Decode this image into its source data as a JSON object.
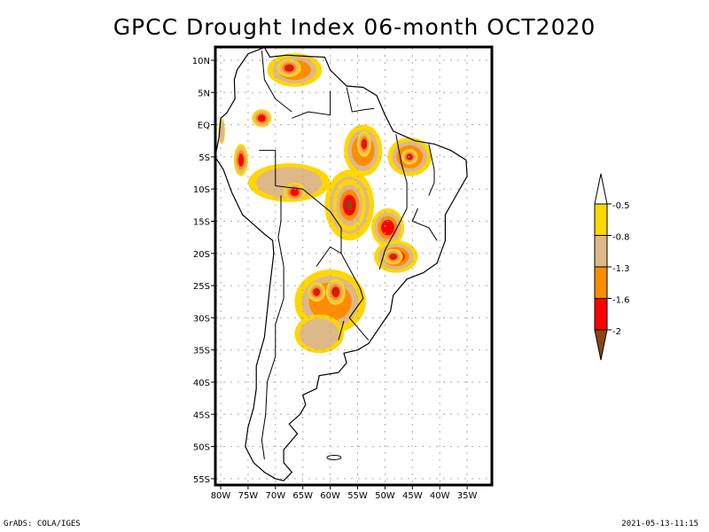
{
  "title": "GPCC Drought Index 06-month OCT2020",
  "map": {
    "projection": "latlon",
    "lon_range": [
      -81,
      -30
    ],
    "lat_range": [
      -56,
      12
    ],
    "lat_ticks": [
      {
        "value": 10,
        "label": "10N"
      },
      {
        "value": 5,
        "label": "5N"
      },
      {
        "value": 0,
        "label": "EQ"
      },
      {
        "value": -5,
        "label": "5S"
      },
      {
        "value": -10,
        "label": "10S"
      },
      {
        "value": -15,
        "label": "15S"
      },
      {
        "value": -20,
        "label": "20S"
      },
      {
        "value": -25,
        "label": "25S"
      },
      {
        "value": -30,
        "label": "30S"
      },
      {
        "value": -35,
        "label": "35S"
      },
      {
        "value": -40,
        "label": "40S"
      },
      {
        "value": -45,
        "label": "45S"
      },
      {
        "value": -50,
        "label": "50S"
      },
      {
        "value": -55,
        "label": "55S"
      }
    ],
    "lon_ticks": [
      {
        "value": -80,
        "label": "80W"
      },
      {
        "value": -75,
        "label": "75W"
      },
      {
        "value": -70,
        "label": "70W"
      },
      {
        "value": -65,
        "label": "65W"
      },
      {
        "value": -60,
        "label": "60W"
      },
      {
        "value": -55,
        "label": "55W"
      },
      {
        "value": -50,
        "label": "50W"
      },
      {
        "value": -45,
        "label": "45W"
      },
      {
        "value": -40,
        "label": "40W"
      },
      {
        "value": -35,
        "label": "35W"
      }
    ],
    "grid": "dotted",
    "regions": [
      {
        "name": "venezuela-north",
        "lon": -66.5,
        "lat": 8.5,
        "rx": 5.0,
        "ry": 2.6,
        "level": 3
      },
      {
        "name": "venezuela-core",
        "lon": -67.5,
        "lat": 8.8,
        "rx": 2.2,
        "ry": 1.4,
        "level": 5
      },
      {
        "name": "colombia-central",
        "lon": -72.5,
        "lat": 1.0,
        "rx": 1.8,
        "ry": 1.4,
        "level": 4
      },
      {
        "name": "ecuador-coast",
        "lon": -79.8,
        "lat": -1.0,
        "rx": 0.6,
        "ry": 2.0,
        "level": 2
      },
      {
        "name": "peru-north",
        "lon": -76.3,
        "lat": -5.5,
        "rx": 1.3,
        "ry": 2.5,
        "level": 4
      },
      {
        "name": "amazon-southwest",
        "lon": -67.5,
        "lat": -9.0,
        "rx": 7.5,
        "ry": 3.0,
        "level": 2
      },
      {
        "name": "bolivia-north",
        "lon": -66.5,
        "lat": -10.5,
        "rx": 2.0,
        "ry": 1.5,
        "level": 4
      },
      {
        "name": "mato-grosso",
        "lon": -56.5,
        "lat": -12.5,
        "rx": 4.5,
        "ry": 5.5,
        "level": 4
      },
      {
        "name": "mato-grosso-core",
        "lon": -56.5,
        "lat": -12.5,
        "rx": 3.0,
        "ry": 4.0,
        "level": 5
      },
      {
        "name": "para-central",
        "lon": -54.0,
        "lat": -4.0,
        "rx": 3.5,
        "ry": 4.0,
        "level": 3
      },
      {
        "name": "para-core",
        "lon": -53.8,
        "lat": -3.0,
        "rx": 1.3,
        "ry": 2.0,
        "level": 5
      },
      {
        "name": "maranhao",
        "lon": -45.5,
        "lat": -5.0,
        "rx": 4.0,
        "ry": 3.0,
        "level": 3
      },
      {
        "name": "maranhao-core",
        "lon": -45.5,
        "lat": -5.0,
        "rx": 1.5,
        "ry": 1.2,
        "level": 5
      },
      {
        "name": "goias",
        "lon": -49.5,
        "lat": -16.0,
        "rx": 3.0,
        "ry": 3.0,
        "level": 4
      },
      {
        "name": "minas-south",
        "lon": -48.0,
        "lat": -20.5,
        "rx": 4.0,
        "ry": 2.5,
        "level": 4
      },
      {
        "name": "minas-core",
        "lon": -48.5,
        "lat": -20.5,
        "rx": 1.8,
        "ry": 1.2,
        "level": 5
      },
      {
        "name": "paraguay-argentina",
        "lon": -60.0,
        "lat": -27.5,
        "rx": 6.5,
        "ry": 5.0,
        "level": 3
      },
      {
        "name": "chaco-core-west",
        "lon": -62.5,
        "lat": -26.0,
        "rx": 1.6,
        "ry": 1.5,
        "level": 5
      },
      {
        "name": "chaco-core-east",
        "lon": -59.0,
        "lat": -26.0,
        "rx": 1.8,
        "ry": 2.0,
        "level": 5
      },
      {
        "name": "pampas",
        "lon": -62.0,
        "lat": -32.5,
        "rx": 4.5,
        "ry": 3.0,
        "level": 2
      }
    ]
  },
  "colorbar": {
    "levels": [
      {
        "label": "-0.5",
        "color": "#ffffff"
      },
      {
        "label": "-0.8",
        "color": "#ffd700"
      },
      {
        "label": "-1.3",
        "color": "#deb887"
      },
      {
        "label": "-1.6",
        "color": "#ff8c00"
      },
      {
        "label": "-2",
        "color": "#ff0000"
      }
    ],
    "bins": [
      {
        "range": "< -2",
        "color": "#8b4513"
      },
      {
        "range": "-2 to -1.6",
        "color": "#ff0000"
      },
      {
        "range": "-1.6 to -1.3",
        "color": "#ff8c00"
      },
      {
        "range": "-1.3 to -0.8",
        "color": "#deb887"
      },
      {
        "range": "-0.8 to -0.5",
        "color": "#ffd700"
      },
      {
        "range": "> -0.5",
        "color": "#ffffff"
      }
    ]
  },
  "level_colors": [
    "#ffffff",
    "#ffd700",
    "#deb887",
    "#ff8c00",
    "#ff0000",
    "#8b4513"
  ],
  "footer": {
    "left": "GrADS: COLA/IGES",
    "right": "2021-05-13-11:15"
  }
}
